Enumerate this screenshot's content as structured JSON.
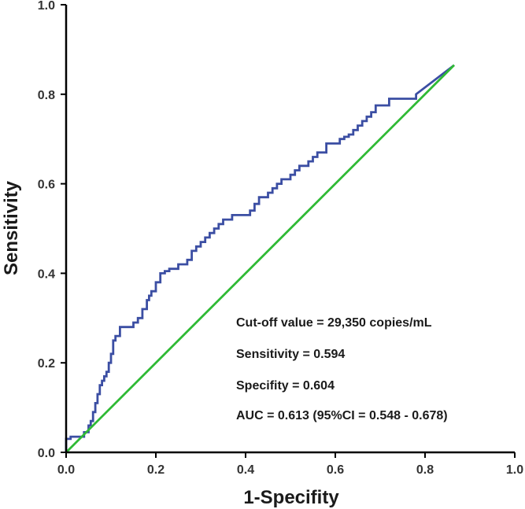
{
  "chart_data": {
    "type": "line",
    "xlabel": "1-Specifity",
    "ylabel": "Sensitivity",
    "xlim": [
      0,
      1
    ],
    "ylim": [
      0,
      1
    ],
    "x_ticks": [
      "0.0",
      "0.2",
      "0.4",
      "0.6",
      "0.8",
      "1.0"
    ],
    "y_ticks": [
      "0.0",
      "0.2",
      "0.4",
      "0.6",
      "0.8",
      "1.0"
    ],
    "grid": false,
    "series": [
      {
        "color": "#3b4ea3",
        "x": [
          0.0,
          0.0,
          0.01,
          0.01,
          0.04,
          0.04,
          0.05,
          0.05,
          0.055,
          0.055,
          0.06,
          0.06,
          0.065,
          0.065,
          0.07,
          0.07,
          0.075,
          0.075,
          0.08,
          0.08,
          0.085,
          0.085,
          0.09,
          0.09,
          0.095,
          0.095,
          0.1,
          0.1,
          0.105,
          0.105,
          0.11,
          0.11,
          0.12,
          0.12,
          0.15,
          0.15,
          0.16,
          0.16,
          0.17,
          0.17,
          0.18,
          0.18,
          0.185,
          0.185,
          0.19,
          0.19,
          0.2,
          0.2,
          0.21,
          0.21,
          0.22,
          0.22,
          0.23,
          0.23,
          0.25,
          0.25,
          0.27,
          0.27,
          0.28,
          0.28,
          0.29,
          0.29,
          0.3,
          0.3,
          0.31,
          0.31,
          0.32,
          0.32,
          0.33,
          0.33,
          0.34,
          0.34,
          0.35,
          0.35,
          0.37,
          0.37,
          0.41,
          0.41,
          0.42,
          0.42,
          0.43,
          0.43,
          0.45,
          0.45,
          0.46,
          0.46,
          0.47,
          0.47,
          0.48,
          0.48,
          0.5,
          0.5,
          0.51,
          0.51,
          0.52,
          0.52,
          0.54,
          0.54,
          0.55,
          0.55,
          0.56,
          0.56,
          0.58,
          0.58,
          0.61,
          0.61,
          0.62,
          0.62,
          0.63,
          0.63,
          0.64,
          0.64,
          0.65,
          0.65,
          0.66,
          0.66,
          0.67,
          0.67,
          0.68,
          0.68,
          0.69,
          0.69,
          0.72,
          0.72,
          0.78,
          0.78,
          0.865
        ],
        "y": [
          0.0,
          0.03,
          0.03,
          0.035,
          0.035,
          0.045,
          0.045,
          0.06,
          0.06,
          0.07,
          0.07,
          0.09,
          0.09,
          0.11,
          0.11,
          0.13,
          0.13,
          0.15,
          0.15,
          0.16,
          0.16,
          0.17,
          0.17,
          0.18,
          0.18,
          0.2,
          0.2,
          0.22,
          0.22,
          0.25,
          0.25,
          0.26,
          0.26,
          0.28,
          0.28,
          0.29,
          0.29,
          0.3,
          0.3,
          0.32,
          0.32,
          0.34,
          0.34,
          0.35,
          0.35,
          0.36,
          0.36,
          0.38,
          0.38,
          0.4,
          0.4,
          0.405,
          0.405,
          0.41,
          0.41,
          0.42,
          0.42,
          0.43,
          0.43,
          0.45,
          0.45,
          0.46,
          0.46,
          0.47,
          0.47,
          0.48,
          0.48,
          0.49,
          0.49,
          0.5,
          0.5,
          0.51,
          0.51,
          0.52,
          0.52,
          0.53,
          0.53,
          0.54,
          0.54,
          0.555,
          0.555,
          0.57,
          0.57,
          0.58,
          0.58,
          0.59,
          0.59,
          0.6,
          0.6,
          0.61,
          0.61,
          0.62,
          0.62,
          0.63,
          0.63,
          0.64,
          0.64,
          0.65,
          0.65,
          0.66,
          0.66,
          0.67,
          0.67,
          0.69,
          0.69,
          0.7,
          0.7,
          0.705,
          0.705,
          0.71,
          0.71,
          0.72,
          0.72,
          0.73,
          0.73,
          0.74,
          0.74,
          0.75,
          0.75,
          0.76,
          0.76,
          0.775,
          0.775,
          0.79,
          0.79,
          0.8,
          0.865
        ]
      },
      {
        "color": "#2fba35",
        "x": [
          0.0,
          0.865
        ],
        "y": [
          0.0,
          0.865
        ]
      }
    ],
    "annotations": [
      "Cut-off value = 29,350  copies/mL",
      "Sensitivity = 0.594",
      "Specifity = 0.604",
      "AUC = 0.613 (95%CI = 0.548 - 0.678)"
    ]
  }
}
